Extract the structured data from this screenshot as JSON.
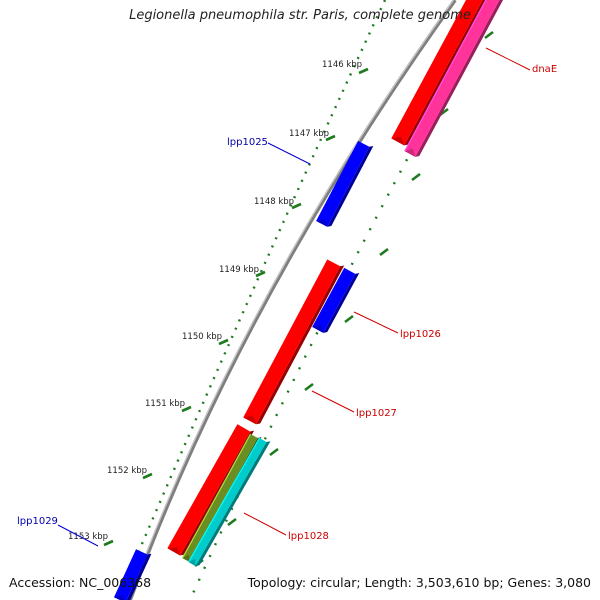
{
  "title": "Legionella pneumophila str. Paris, complete genome",
  "footer": {
    "accession": "Accession: NC_006368",
    "summary": "Topology: circular; Length: 3,503,610 bp; Genes: 3,080"
  },
  "colors": {
    "backbone": "#8a8a8a",
    "tick": "#1d7a1d",
    "label_forward": "#cc0000",
    "label_reverse": "#0000aa",
    "callout_line_forward": "#cc0000",
    "callout_line_reverse": "#0000cc"
  },
  "ticks": [
    {
      "label": "1146 kbp"
    },
    {
      "label": "1147 kbp"
    },
    {
      "label": "1148 kbp"
    },
    {
      "label": "1149 kbp"
    },
    {
      "label": "1150 kbp"
    },
    {
      "label": "1151 kbp"
    },
    {
      "label": "1152 kbp"
    },
    {
      "label": "1153 kbp"
    }
  ],
  "genes": [
    {
      "name": "dnaE",
      "strand": "forward",
      "color": "#ff0000"
    },
    {
      "name": "",
      "strand": "forward",
      "color": "#ff3399"
    },
    {
      "name": "lpp1025",
      "strand": "reverse",
      "color": "#0000ff"
    },
    {
      "name": "lpp1026",
      "strand": "forward",
      "color": "#0000ff"
    },
    {
      "name": "lpp1027",
      "strand": "forward",
      "color": "#ff0000"
    },
    {
      "name": "lpp1028",
      "strand": "forward",
      "color": "#ff0000"
    },
    {
      "name": "",
      "strand": "forward",
      "color": "#6b8e23"
    },
    {
      "name": "",
      "strand": "forward",
      "color": "#00cccc"
    },
    {
      "name": "lpp1029",
      "strand": "reverse",
      "color": "#0000ff"
    }
  ]
}
